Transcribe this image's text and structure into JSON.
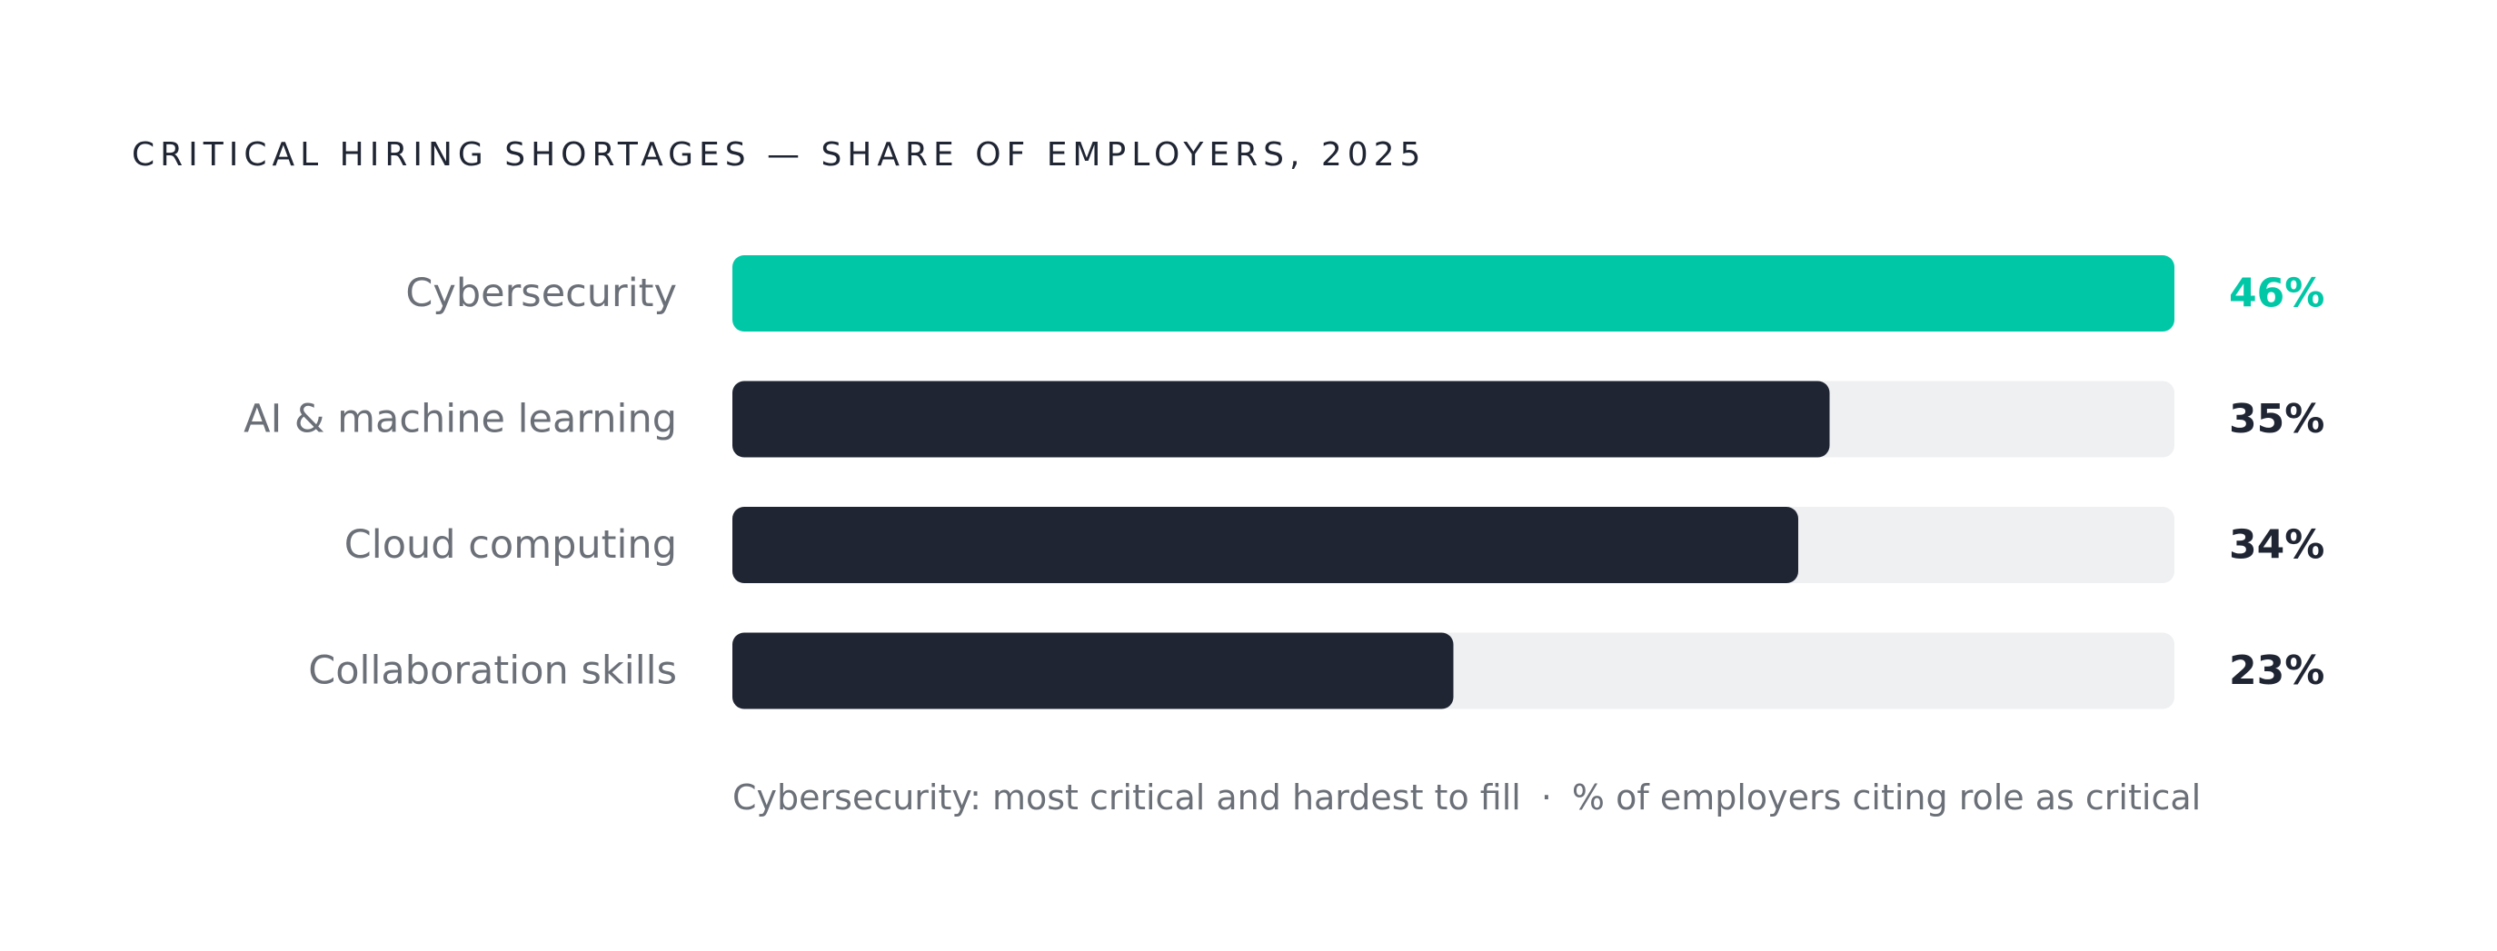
{
  "chart_data": {
    "type": "bar",
    "orientation": "horizontal",
    "title": "CRITICAL HIRING SHORTAGES — SHARE OF EMPLOYERS, 2025",
    "categories": [
      "Cybersecurity",
      "AI & machine learning",
      "Cloud computing",
      "Collaboration skills"
    ],
    "values": [
      46,
      35,
      34,
      23
    ],
    "value_labels": [
      "46%",
      "35%",
      "34%",
      "23%"
    ],
    "unit": "%",
    "xlim": [
      0,
      46
    ],
    "highlight_index": 0,
    "grid": false,
    "legend": "none",
    "colors": {
      "highlight": "#00c8a7",
      "bar": "#1f2533",
      "track": "#eff0f2",
      "category_text": "#6b7078",
      "value_text": "#1f2533"
    }
  },
  "footnote": {
    "left": "Cybersecurity: most critical and hardest to fill",
    "separator": "·",
    "right": "% of employers citing role as critical"
  }
}
